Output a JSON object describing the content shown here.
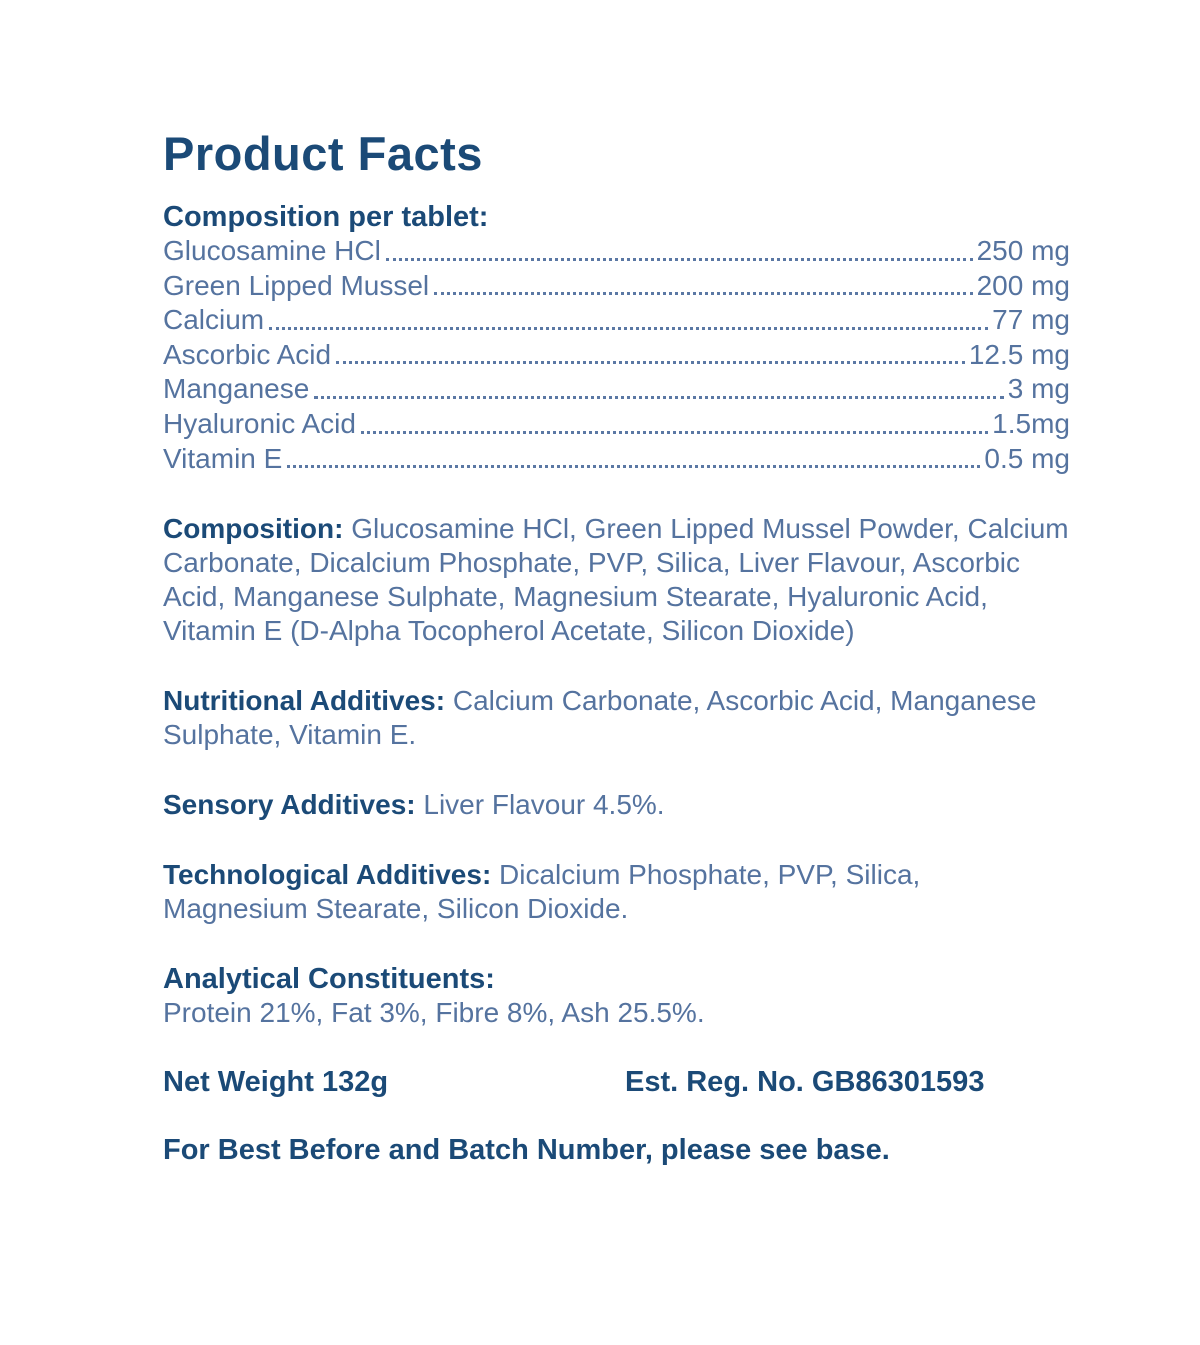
{
  "title": "Product Facts",
  "colors": {
    "heading_navy": "#1B4A77",
    "body_blue": "#55739F",
    "background": "#FFFFFF"
  },
  "composition_table": {
    "heading": "Composition per tablet:",
    "rows": [
      {
        "name": "Glucosamine HCl",
        "value": "250 mg"
      },
      {
        "name": "Green Lipped Mussel",
        "value": "200 mg"
      },
      {
        "name": "Calcium",
        "value": "77 mg"
      },
      {
        "name": "Ascorbic Acid",
        "value": "12.5 mg"
      },
      {
        "name": "Manganese",
        "value": "3 mg"
      },
      {
        "name": "Hyaluronic Acid",
        "value": "1.5mg"
      },
      {
        "name": "Vitamin E",
        "value": "0.5 mg"
      }
    ]
  },
  "sections": [
    {
      "label": "Composition:",
      "text": "Glucosamine HCl, Green Lipped Mussel Powder, Calcium Carbonate, Dicalcium Phosphate, PVP, Silica, Liver Flavour, Ascorbic Acid, Manganese Sulphate, Magnesium Stearate, Hyaluronic Acid, Vitamin E (D-Alpha Tocopherol Acetate, Silicon Dioxide)"
    },
    {
      "label": "Nutritional Additives:",
      "text": "Calcium Carbonate, Ascorbic Acid, Manganese Sulphate, Vitamin E."
    },
    {
      "label": "Sensory Additives:",
      "text": "Liver Flavour 4.5%."
    },
    {
      "label": "Technological Additives:",
      "text": "Dicalcium Phosphate, PVP, Silica, Magnesium Stearate, Silicon Dioxide."
    }
  ],
  "analytical": {
    "heading": "Analytical Constituents:",
    "text": "Protein 21%, Fat 3%, Fibre 8%, Ash 25.5%."
  },
  "footer": {
    "net_weight": "Net Weight 132g",
    "est_reg": "Est. Reg. No. GB86301593",
    "note": "For Best Before and Batch Number, please see base."
  }
}
